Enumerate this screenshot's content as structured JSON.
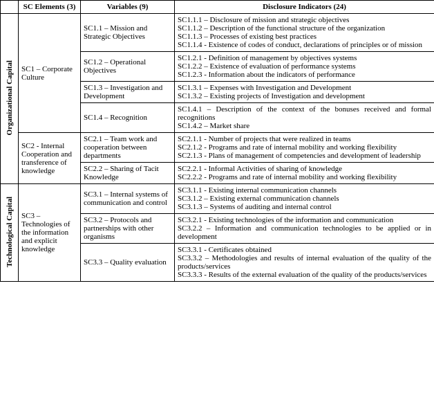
{
  "headers": {
    "col1": "",
    "col2": "SC Elements (3)",
    "col3": "Variables (9)",
    "col4": "Disclosure Indicators (24)"
  },
  "cat1": {
    "label": "Organizational Capital"
  },
  "cat2": {
    "label": "Technological Capital"
  },
  "sc1": {
    "label": "SC1 – Corporate Culture"
  },
  "sc2": {
    "label": "SC2 - Internal Cooperation and transference of knowledge"
  },
  "sc3": {
    "label": "SC3 – Technologies of the information and explicit knowledge"
  },
  "v11": {
    "label": "SC1.1 – Mission and Strategic Objectives"
  },
  "v12": {
    "label": "SC1.2 – Operational Objectives"
  },
  "v13": {
    "label": "SC1.3 – Investigation and Development"
  },
  "v14": {
    "label": "SC1.4 – Recognition"
  },
  "v21": {
    "label": "SC2.1 – Team work and cooperation between departments"
  },
  "v22": {
    "label": "SC2.2 – Sharing of Tacit Knowledge"
  },
  "v31": {
    "label": "SC3.1 – Internal systems of communication and control"
  },
  "v32": {
    "label": "SC3.2 – Protocols and partnerships with other organisms"
  },
  "v33": {
    "label": "SC3.3 – Quality evaluation"
  },
  "d11": {
    "l1": "SC1.1.1 – Disclosure of mission and strategic objectives",
    "l2": "SC1.1.2 – Description of the functional structure of the organization",
    "l3": "SC1.1.3 – Processes of existing best practices",
    "l4": "SC1.1.4 - Existence of codes of conduct, declarations of principles or of mission"
  },
  "d12": {
    "l1": "SC1.2.1 - Definition of management by objectives systems",
    "l2": "SC1.2.2 – Existence of evaluation of performance systems",
    "l3": "SC1.2.3 - Information about the indicators of performance"
  },
  "d13": {
    "l1": "SC1.3.1 – Expenses with Investigation and Development",
    "l2": "SC1.3.2 – Existing projects of Investigation and development"
  },
  "d14": {
    "l1": "SC1.4.1 – Description of the context of the bonuses received and formal recognitions",
    "l2": "SC1.4.2 – Market share"
  },
  "d21": {
    "l1": "SC2.1.1 - Number of projects that were realized in teams",
    "l2": "SC2.1.2 - Programs and rate of internal mobility and working flexibility",
    "l3": "SC2.1.3 - Plans of management of competencies and development of leadership"
  },
  "d22": {
    "l1": "SC2.2.1 - Informal Activities of sharing of knowledge",
    "l2": "SC2.2.2 - Programs and rate of internal mobility and working flexibility"
  },
  "d31": {
    "l1": "SC3.1.1 - Existing internal communication channels",
    "l2": "SC3.1.2 – Existing external communication channels",
    "l3": "SC3.1.3 – Systems of auditing and internal control"
  },
  "d32": {
    "l1": "SC3.2.1 - Existing technologies of the information and communication",
    "l2": "SC3.2.2 – Information and communication technologies to be applied or in development"
  },
  "d33": {
    "l1": "SC3.3.1 - Certificates obtained",
    "l2": "SC3.3.2 – Methodologies and results of internal evaluation of the quality of the products/services",
    "l3": "SC3.3.3 - Results of the external evaluation of the quality of the products/services"
  }
}
